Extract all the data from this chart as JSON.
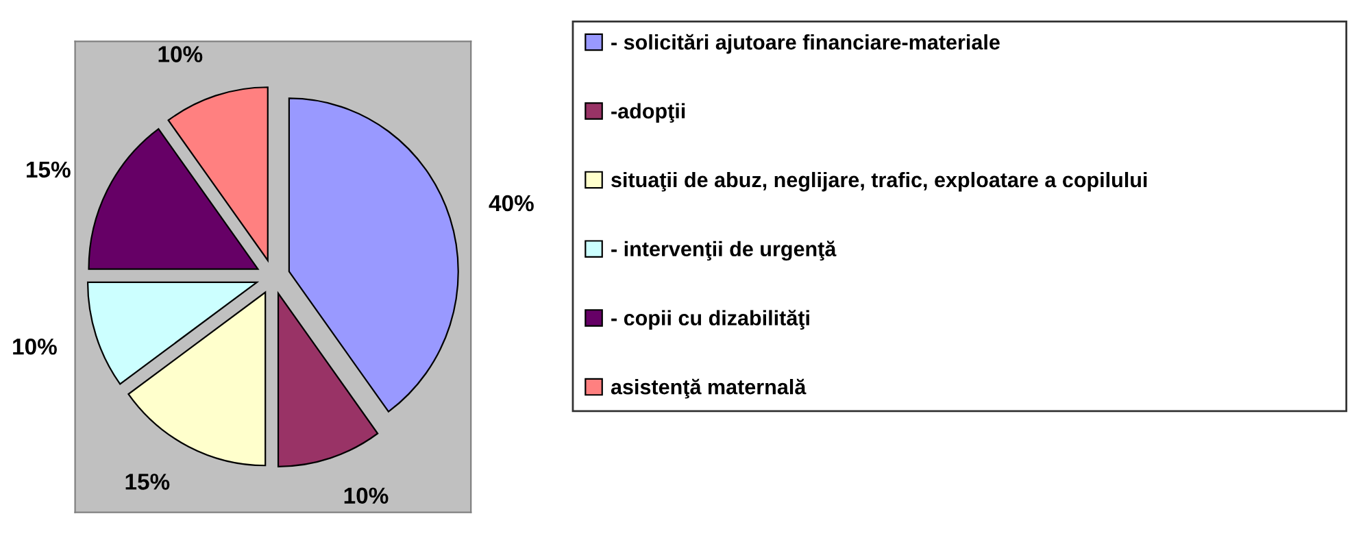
{
  "chart_data": {
    "type": "pie",
    "categories": [
      "- solicitări ajutoare financiare-materiale",
      "-adopţii",
      "situaţii de abuz, neglijare, trafic, exploatare a copilului",
      "- intervenţii de urgenţă",
      "- copii cu dizabilităţi",
      "asistenţă maternală"
    ],
    "values": [
      40,
      10,
      15,
      10,
      15,
      10
    ],
    "colors": [
      "#9999ff",
      "#993366",
      "#ffffcc",
      "#ccffff",
      "#660066",
      "#ff8080"
    ],
    "value_labels": [
      "40%",
      "10%",
      "15%",
      "10%",
      "15%",
      "10%"
    ],
    "legend": "right"
  }
}
